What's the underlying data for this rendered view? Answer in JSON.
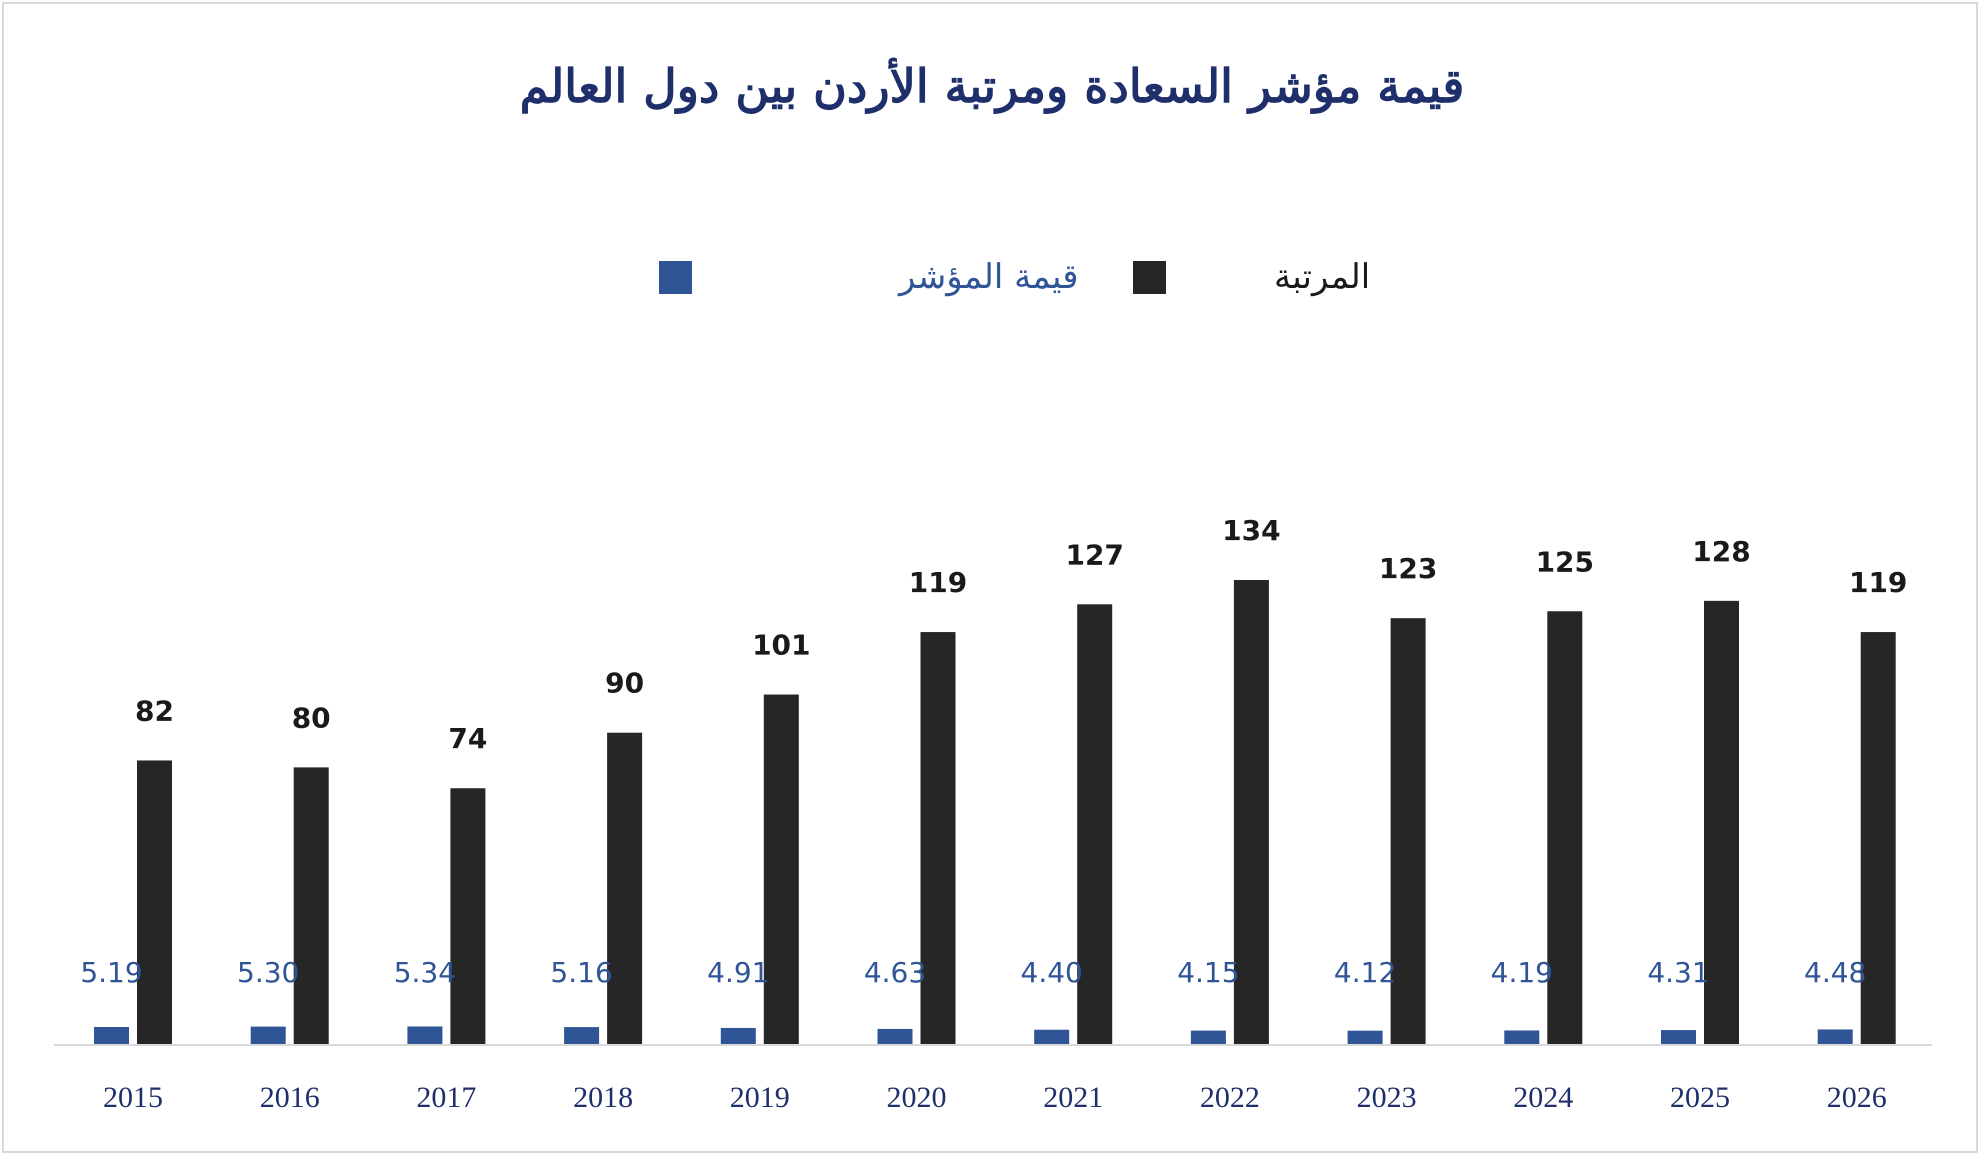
{
  "chart_data": {
    "type": "bar",
    "title": "قيمة مؤشر السعادة ومرتبة الأردن بين دول العالم",
    "categories": [
      "2015",
      "2016",
      "2017",
      "2018",
      "2019",
      "2020",
      "2021",
      "2022",
      "2023",
      "2024",
      "2025",
      "2026"
    ],
    "series": [
      {
        "name": "قيمة المؤشر",
        "color": "#2f5597",
        "values": [
          5.19,
          5.3,
          5.34,
          5.16,
          4.91,
          4.63,
          4.4,
          4.15,
          4.12,
          4.19,
          4.31,
          4.48
        ],
        "labels": [
          "5.19",
          "5.30",
          "5.34",
          "5.16",
          "4.91",
          "4.63",
          "4.40",
          "4.15",
          "4.12",
          "4.19",
          "4.31",
          "4.48"
        ]
      },
      {
        "name": "المرتبة",
        "color": "#262626",
        "values": [
          82,
          80,
          74,
          90,
          101,
          119,
          127,
          134,
          123,
          125,
          128,
          119
        ],
        "labels": [
          "82",
          "80",
          "74",
          "90",
          "101",
          "119",
          "127",
          "134",
          "123",
          "125",
          "128",
          "119"
        ]
      }
    ],
    "ylim": [
      0,
      134
    ],
    "legend_position": "top",
    "grid": false,
    "xlabel": "",
    "ylabel": ""
  }
}
